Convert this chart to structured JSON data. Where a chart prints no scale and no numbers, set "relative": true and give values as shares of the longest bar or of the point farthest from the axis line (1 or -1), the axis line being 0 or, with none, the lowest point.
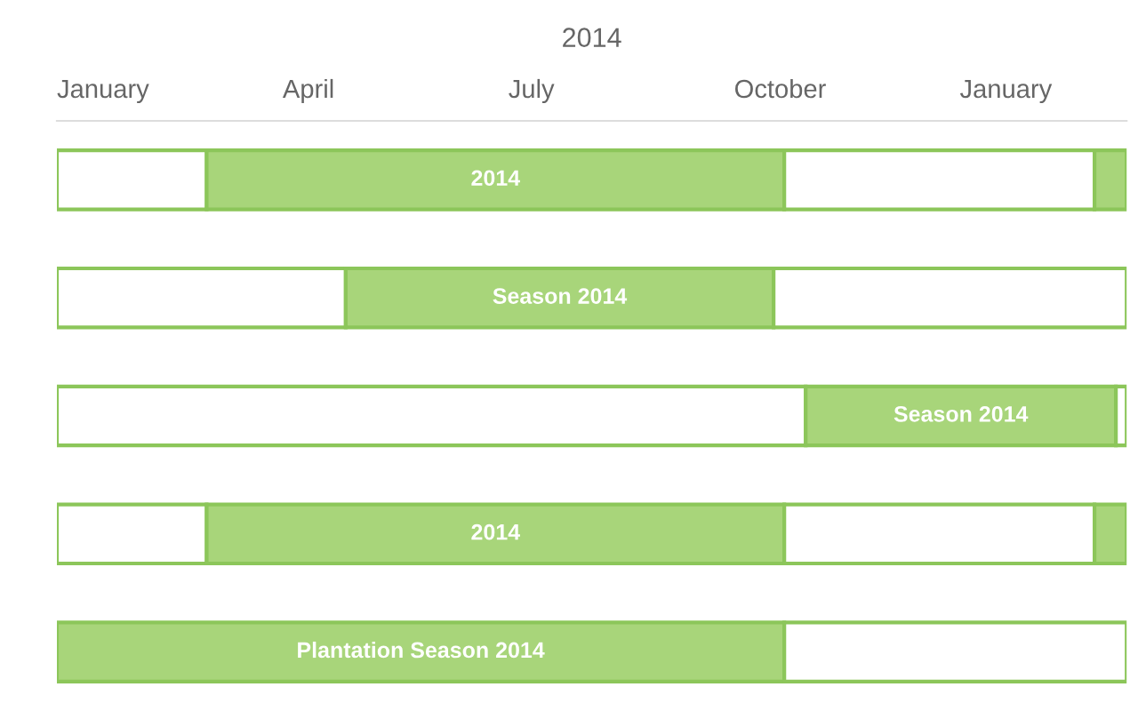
{
  "chart_data": {
    "type": "bar",
    "orientation": "horizontal",
    "stacked": true,
    "relative": true,
    "xlabel": "2014",
    "categories": [
      null,
      null,
      null,
      null,
      null
    ],
    "series": [
      {
        "color": "#ffffff",
        "values": [
          0.14,
          0.27,
          0.7,
          0.14,
          null
        ]
      },
      {
        "color": "#a8d57a",
        "values": [
          0.54,
          0.4,
          0.29,
          0.54,
          0.68
        ]
      },
      {
        "color": "#ffffff",
        "values": [
          0.29,
          0.33,
          0.01,
          0.29,
          0.32
        ]
      },
      {
        "color": "#a8d57a",
        "values": [
          0.03,
          null,
          null,
          0.03,
          null
        ]
      }
    ],
    "annotations": [
      "2014",
      "Season 2014",
      "Season 2014",
      "2014",
      "Plantation Season 2014",
      "January",
      "April",
      "July",
      "October",
      "January"
    ],
    "legend": false
  }
}
